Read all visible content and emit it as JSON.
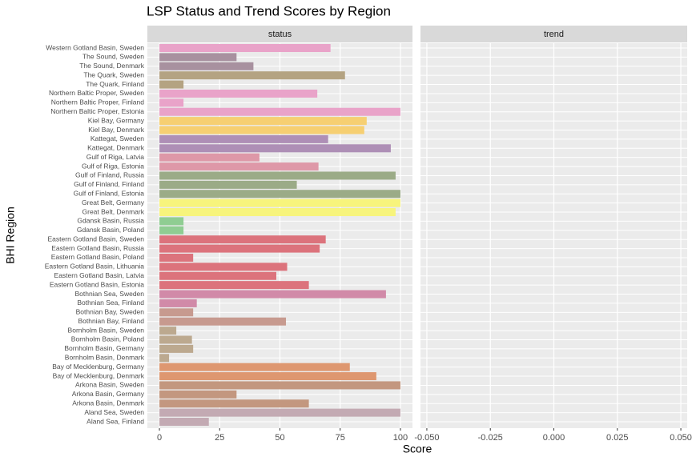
{
  "chart_data": {
    "type": "bar",
    "orientation": "horizontal",
    "title": "LSP Status and Trend Scores by Region",
    "x_label": "Score",
    "y_label": "BHI Region",
    "grid": true,
    "categories": [
      "Western Gotland Basin, Sweden",
      "The Sound, Sweden",
      "The Sound, Denmark",
      "The Quark, Sweden",
      "The Quark, Finland",
      "Northern Baltic Proper, Sweden",
      "Northern Baltic Proper, Finland",
      "Northern Baltic Proper, Estonia",
      "Kiel Bay, Germany",
      "Kiel Bay, Denmark",
      "Kattegat, Sweden",
      "Kattegat, Denmark",
      "Gulf of Riga, Latvia",
      "Gulf of Riga, Estonia",
      "Gulf of Finland, Russia",
      "Gulf of Finland, Finland",
      "Gulf of Finland, Estonia",
      "Great Belt, Germany",
      "Great Belt, Denmark",
      "Gdansk Basin, Russia",
      "Gdansk Basin, Poland",
      "Eastern Gotland Basin, Sweden",
      "Eastern Gotland Basin, Russia",
      "Eastern Gotland Basin, Poland",
      "Eastern Gotland Basin, Lithuania",
      "Eastern Gotland Basin, Latvia",
      "Eastern Gotland Basin, Estonia",
      "Bothnian Sea, Sweden",
      "Bothnian Sea, Finland",
      "Bothnian Bay, Sweden",
      "Bothnian Bay, Finland",
      "Bornholm Basin, Sweden",
      "Bornholm Basin, Poland",
      "Bornholm Basin, Germany",
      "Bornholm Basin, Denmark",
      "Bay of Mecklenburg, Germany",
      "Bay of Mecklenburg, Denmark",
      "Arkona Basin, Sweden",
      "Arkona Basin, Germany",
      "Arkona Basin, Denmark",
      "Aland Sea, Sweden",
      "Aland Sea, Finland"
    ],
    "facets": [
      {
        "name": "status",
        "xlim": [
          -5,
          105
        ],
        "xticks": [
          0,
          25,
          50,
          75,
          100
        ],
        "values": [
          71,
          32,
          39,
          77,
          10,
          65.5,
          10,
          100,
          86,
          85,
          70,
          96,
          41.5,
          66,
          98,
          57,
          100,
          100,
          98,
          10,
          10,
          69,
          66.5,
          14,
          53,
          48.5,
          62,
          94,
          15.5,
          14,
          52.5,
          7,
          13.5,
          14,
          4,
          79,
          90,
          100,
          32,
          62,
          100,
          20.5
        ],
        "colors": [
          "#e9a3c9",
          "#a8919f",
          "#a8919f",
          "#b4a382",
          "#b4a382",
          "#e9a3c9",
          "#e9a3c9",
          "#e9a3c9",
          "#f6cf72",
          "#f6cf72",
          "#ae8fb6",
          "#ae8fb6",
          "#de98a8",
          "#de98a8",
          "#9bab87",
          "#9bab87",
          "#9bab87",
          "#f7f47c",
          "#f7f47c",
          "#8fcd92",
          "#8fcd92",
          "#dc737c",
          "#dc737c",
          "#dc737c",
          "#dc737c",
          "#dc737c",
          "#dc737c",
          "#d18aa8",
          "#d18aa8",
          "#c79a8f",
          "#c79a8f",
          "#bca98f",
          "#bca98f",
          "#bca98f",
          "#bca98f",
          "#de9770",
          "#de9770",
          "#c3977f",
          "#c3977f",
          "#c3977f",
          "#c3aab3",
          "#c3aab3"
        ]
      },
      {
        "name": "trend",
        "xlim": [
          -0.0525,
          0.0525
        ],
        "xticks": [
          {
            "value": -0.05,
            "label": "-0.050"
          },
          {
            "value": -0.025,
            "label": "-0.025"
          },
          {
            "value": 0,
            "label": "0.000"
          },
          {
            "value": 0.025,
            "label": "0.025"
          },
          {
            "value": 0.05,
            "label": "0.050"
          }
        ]
      }
    ]
  }
}
